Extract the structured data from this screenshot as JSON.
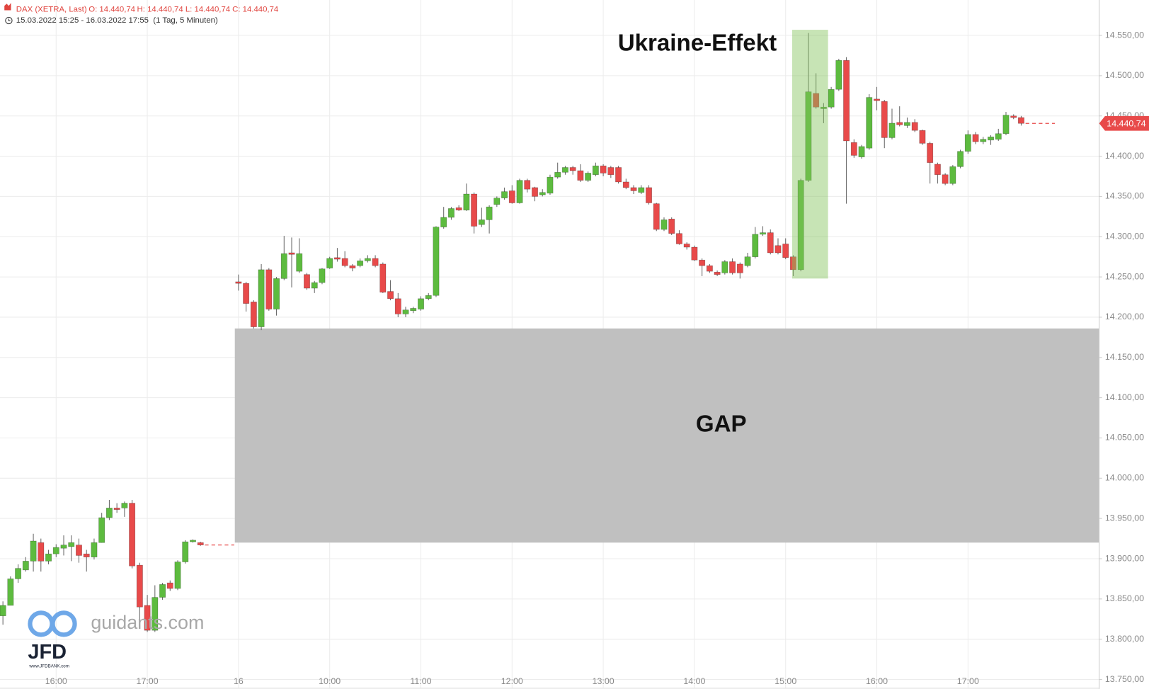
{
  "chart_data": {
    "type": "candlestick",
    "title": "DAX (XETRA, Last)",
    "open_label": "O: 14.440,74",
    "high_label": "H: 14.440,74",
    "low_label": "L: 14.440,74",
    "close_label": "C: 14.440,74",
    "subtitle": "15.03.2022 15:25 - 16.03.2022 17:55  (1 Tag, 5 Minuten)",
    "watermark": "guidants.com",
    "logo": "JFD",
    "logo_sub": "www.JFDBANK.com",
    "up_color": "#5dbb3f",
    "down_color": "#e84a4a",
    "grid": true,
    "ylim": [
      13750,
      14594
    ],
    "yticks": [
      {
        "value": 13750,
        "label": "13.750,00"
      },
      {
        "value": 13800,
        "label": "13.800,00"
      },
      {
        "value": 13850,
        "label": "13.850,00"
      },
      {
        "value": 13900,
        "label": "13.900,00"
      },
      {
        "value": 13950,
        "label": "13.950,00"
      },
      {
        "value": 14000,
        "label": "14.000,00"
      },
      {
        "value": 14050,
        "label": "14.050,00"
      },
      {
        "value": 14100,
        "label": "14.100,00"
      },
      {
        "value": 14150,
        "label": "14.150,00"
      },
      {
        "value": 14200,
        "label": "14.200,00"
      },
      {
        "value": 14250,
        "label": "14.250,00"
      },
      {
        "value": 14300,
        "label": "14.300,00"
      },
      {
        "value": 14350,
        "label": "14.350,00"
      },
      {
        "value": 14400,
        "label": "14.400,00"
      },
      {
        "value": 14450,
        "label": "14.450,00"
      },
      {
        "value": 14500,
        "label": "14.500,00"
      },
      {
        "value": 14550,
        "label": "14.550,00"
      }
    ],
    "last_price": {
      "value": 14440.74,
      "label": "14.440,74"
    },
    "gap": {
      "label": "GAP",
      "low": 13920,
      "high": 14186
    },
    "highlight": {
      "label": "Ukraine-Effekt",
      "low": 14248,
      "high": 14557
    },
    "categories": [
      null,
      null,
      null,
      null,
      null,
      null,
      null,
      "16:00",
      null,
      null,
      null,
      null,
      null,
      null,
      null,
      null,
      null,
      null,
      null,
      "17:00",
      null,
      null,
      null,
      null,
      null,
      null,
      null,
      null,
      null,
      null,
      null,
      "16",
      null,
      null,
      null,
      null,
      null,
      null,
      null,
      null,
      null,
      null,
      null,
      "10:00",
      null,
      null,
      null,
      null,
      null,
      null,
      null,
      null,
      null,
      null,
      null,
      "11:00",
      null,
      null,
      null,
      null,
      null,
      null,
      null,
      null,
      null,
      null,
      null,
      "12:00",
      null,
      null,
      null,
      null,
      null,
      null,
      null,
      null,
      null,
      null,
      null,
      "13:00",
      null,
      null,
      null,
      null,
      null,
      null,
      null,
      null,
      null,
      null,
      null,
      "14:00",
      null,
      null,
      null,
      null,
      null,
      null,
      null,
      null,
      null,
      null,
      null,
      "15:00",
      null,
      null,
      null,
      null,
      null,
      null,
      null,
      null,
      null,
      null,
      null,
      "16:00",
      null,
      null,
      null,
      null,
      null,
      null,
      null,
      null,
      null,
      null,
      null,
      "17:00",
      null,
      null,
      null,
      null,
      null,
      null,
      null,
      null,
      null,
      null,
      null,
      null,
      null,
      null,
      null,
      null
    ],
    "open": [
      13829,
      13842,
      13875,
      13886,
      13897,
      13920,
      13897,
      13906,
      13913,
      13915,
      13917,
      13906,
      13902,
      13920,
      13951,
      13963,
      13963,
      13969,
      13892,
      13842,
      13811,
      13852,
      13870,
      13863,
      13896,
      13921,
      13920,
      null,
      null,
      null,
      null,
      14244,
      14242,
      14219,
      14188,
      14259,
      14210,
      14248,
      14280,
      14257,
      14253,
      14236,
      14243,
      14261,
      14274,
      14273,
      14264,
      14264,
      14270,
      14273,
      14266,
      14232,
      14223,
      14204,
      14208,
      14210,
      14223,
      14227,
      14312,
      14324,
      14336,
      14333,
      14353,
      14315,
      14321,
      14340,
      14348,
      14357,
      14342,
      14370,
      14361,
      14352,
      14354,
      14374,
      14380,
      14386,
      14382,
      14370,
      14377,
      14388,
      14386,
      14386,
      14368,
      14361,
      14355,
      14361,
      14341,
      14309,
      14322,
      14304,
      14291,
      14287,
      14271,
      14264,
      14256,
      14255,
      14269,
      14266,
      14264,
      14275,
      14303,
      14305,
      14289,
      14291,
      14275,
      14259,
      14370,
      14478,
      14459,
      14461,
      14483,
      14519,
      14417,
      14399,
      14410,
      14471,
      14468,
      14423,
      14442,
      14438,
      14442,
      14432,
      14416,
      14390,
      14377,
      14366,
      14387,
      14406,
      14427,
      14418,
      14420,
      14421,
      14428,
      14450,
      14448,
      null,
      null,
      null,
      null,
      null,
      null,
      null,
      null,
      null
    ],
    "high": [
      13847,
      13878,
      13893,
      13902,
      13931,
      13925,
      13911,
      13918,
      13929,
      13929,
      13925,
      13911,
      13925,
      13957,
      13973,
      13969,
      13971,
      13973,
      13895,
      13855,
      13867,
      13870,
      13873,
      13898,
      13923,
      13924,
      13921,
      null,
      null,
      null,
      null,
      14253,
      14244,
      14221,
      14266,
      14261,
      14250,
      14301,
      14299,
      14298,
      14255,
      14245,
      14261,
      14275,
      14286,
      14282,
      14266,
      14273,
      14277,
      14277,
      14268,
      14246,
      14230,
      14213,
      14213,
      14226,
      14230,
      14313,
      14337,
      14337,
      14339,
      14366,
      14355,
      14336,
      14339,
      14350,
      14361,
      14364,
      14372,
      14372,
      14362,
      14359,
      14377,
      14392,
      14388,
      14388,
      14390,
      14381,
      14392,
      14390,
      14388,
      14388,
      14372,
      14364,
      14364,
      14364,
      14342,
      14324,
      14324,
      14308,
      14293,
      14289,
      14273,
      14266,
      14258,
      14271,
      14273,
      14268,
      14280,
      14312,
      14313,
      14309,
      14298,
      14298,
      14277,
      14372,
      14553,
      14503,
      14466,
      14486,
      14521,
      14523,
      14421,
      14414,
      14477,
      14486,
      14470,
      14459,
      14462,
      14448,
      14446,
      14433,
      14418,
      14392,
      14379,
      14389,
      14408,
      14432,
      14430,
      14424,
      14426,
      14434,
      14455,
      14452,
      14450,
      null,
      null,
      null,
      null,
      null,
      null,
      null,
      null,
      null
    ],
    "low": [
      13818,
      13842,
      13870,
      13884,
      13884,
      13884,
      13893,
      13902,
      13904,
      13897,
      13895,
      13884,
      13899,
      13920,
      13948,
      13957,
      13952,
      13888,
      13820,
      13809,
      13809,
      13849,
      13860,
      13861,
      13894,
      13920,
      13916,
      null,
      null,
      null,
      null,
      14233,
      14207,
      14186,
      14184,
      14208,
      14202,
      14246,
      14237,
      14255,
      14234,
      14230,
      14241,
      14260,
      14269,
      14262,
      14257,
      14262,
      14268,
      14262,
      14230,
      14221,
      14200,
      14200,
      14205,
      14208,
      14221,
      14225,
      14310,
      14321,
      14332,
      14332,
      14304,
      14312,
      14304,
      14337,
      14346,
      14341,
      14341,
      14355,
      14344,
      14350,
      14352,
      14372,
      14377,
      14377,
      14368,
      14368,
      14375,
      14375,
      14373,
      14366,
      14359,
      14353,
      14353,
      14340,
      14307,
      14307,
      14302,
      14290,
      14284,
      14270,
      14251,
      14255,
      14251,
      14253,
      14253,
      14248,
      14262,
      14273,
      14301,
      14278,
      14278,
      14272,
      14251,
      14257,
      14368,
      14459,
      14441,
      14459,
      14481,
      14341,
      14398,
      14397,
      14408,
      14457,
      14410,
      14421,
      14437,
      14435,
      14430,
      14414,
      14366,
      14366,
      14364,
      14364,
      14385,
      14403,
      14415,
      14415,
      14414,
      14419,
      14426,
      14446,
      14438,
      null,
      null,
      null,
      null,
      null,
      null,
      null,
      null,
      null
    ],
    "close": [
      13842,
      13875,
      13888,
      13897,
      13922,
      13897,
      13906,
      13914,
      13917,
      13920,
      13904,
      13902,
      13920,
      13951,
      13963,
      13961,
      13969,
      13891,
      13840,
      13811,
      13852,
      13868,
      13863,
      13896,
      13921,
      13923,
      13917,
      null,
      null,
      null,
      null,
      14242,
      14217,
      14188,
      14259,
      14210,
      14248,
      14279,
      14278,
      14279,
      14236,
      14243,
      14260,
      14273,
      14272,
      14264,
      14261,
      14270,
      14273,
      14264,
      14231,
      14223,
      14204,
      14209,
      14211,
      14223,
      14227,
      14312,
      14324,
      14335,
      14333,
      14353,
      14313,
      14321,
      14337,
      14348,
      14356,
      14342,
      14370,
      14359,
      14350,
      14355,
      14374,
      14380,
      14386,
      14382,
      14370,
      14379,
      14388,
      14379,
      14377,
      14368,
      14361,
      14357,
      14361,
      14342,
      14309,
      14321,
      14304,
      14291,
      14287,
      14271,
      14264,
      14257,
      14253,
      14269,
      14255,
      14255,
      14275,
      14303,
      14305,
      14280,
      14280,
      14274,
      14259,
      14370,
      14480,
      14461,
      14461,
      14483,
      14519,
      14419,
      14401,
      14412,
      14473,
      14469,
      14423,
      14441,
      14439,
      14442,
      14432,
      14416,
      14392,
      14377,
      14366,
      14387,
      14406,
      14427,
      14418,
      14421,
      14424,
      14428,
      14451,
      14448,
      14440.74,
      null,
      null,
      null,
      null,
      null,
      null,
      null,
      null,
      null
    ]
  }
}
